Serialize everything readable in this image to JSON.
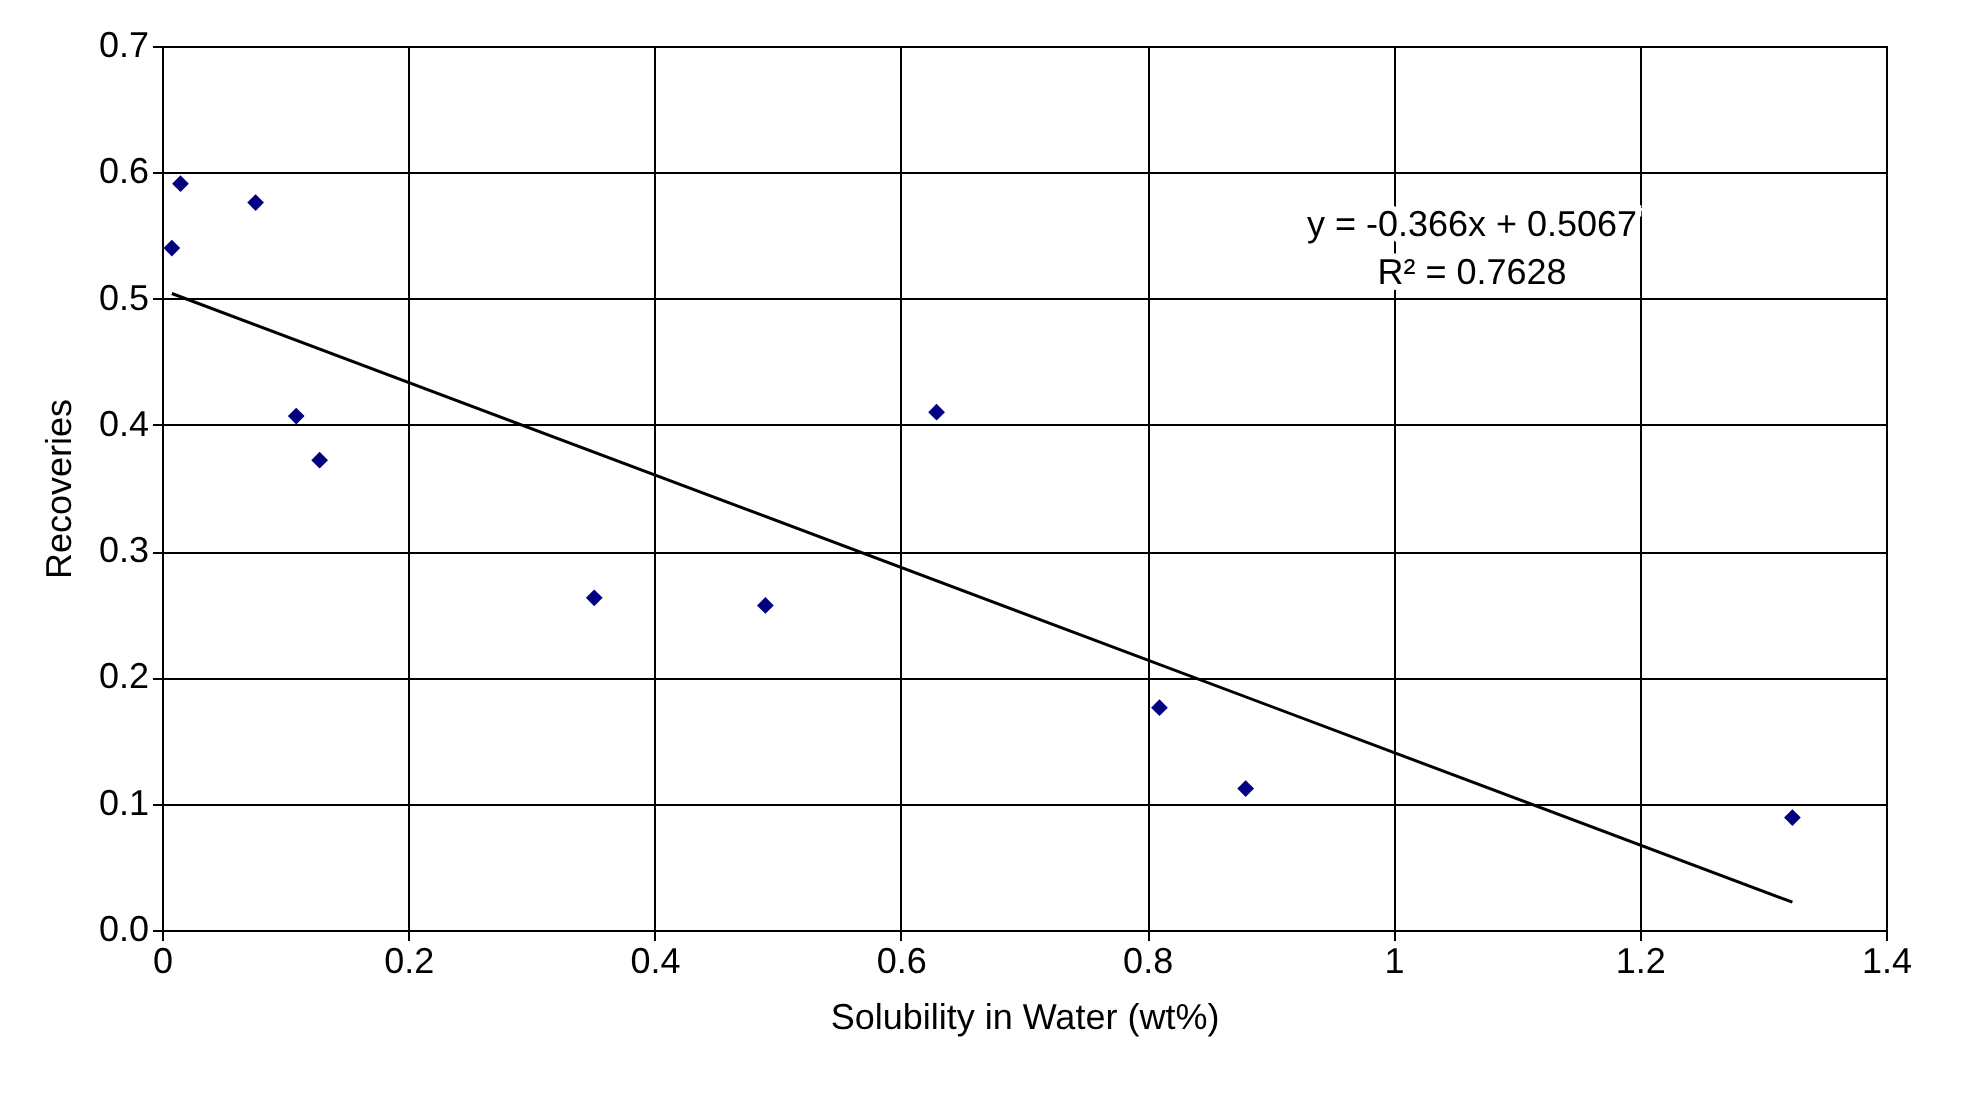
{
  "chart_data": {
    "type": "scatter",
    "xlabel": "Solubility in Water (wt%)",
    "ylabel": "Recoveries",
    "xlim": [
      0,
      1.4
    ],
    "xticks": [
      0,
      0.2,
      0.4,
      0.6,
      0.8,
      1,
      1.2,
      1.4
    ],
    "ylim": [
      0,
      0.7
    ],
    "yticks": [
      {
        "value": 0,
        "label": "0.0"
      },
      0.1,
      0.2,
      0.3,
      0.4,
      0.5,
      0.6,
      0.7
    ],
    "grid": true,
    "legend": false,
    "series": [
      {
        "type": "scatter",
        "marker": "diamond",
        "color": "#000080",
        "x": [
          0.008,
          0.015,
          0.076,
          0.109,
          0.128,
          0.351,
          0.49,
          0.629,
          0.81,
          0.88,
          1.324
        ],
        "values": [
          0.54,
          0.591,
          0.576,
          0.407,
          0.372,
          0.263,
          0.257,
          0.41,
          0.176,
          0.112,
          0.089
        ]
      },
      {
        "type": "line",
        "marker": "none",
        "color": "#000000",
        "line_style": "solid",
        "x": [
          0.008,
          1.324
        ],
        "values": [
          0.504,
          0.022
        ]
      }
    ],
    "annotations": [
      "y = -0.366x + 0.5067",
      "R² = 0.7628"
    ]
  }
}
